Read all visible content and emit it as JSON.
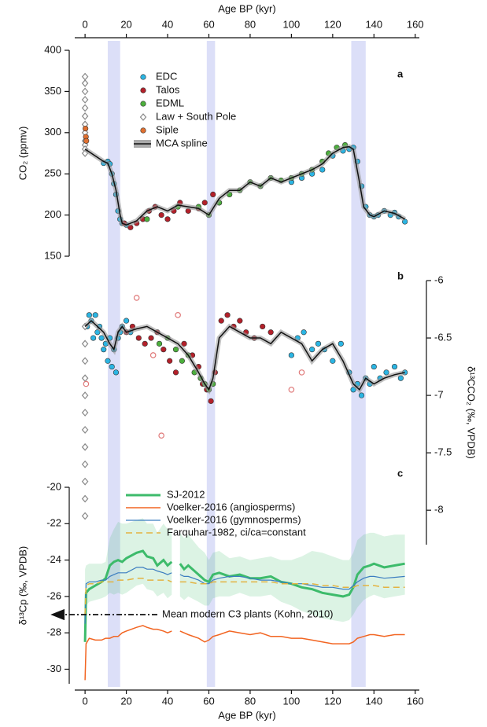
{
  "chart_data": [
    {
      "type": "scatter",
      "panel_label": "a",
      "xlabel_top": "Age BP (kyr)",
      "ylabel": "CO₂ (ppmv)",
      "y_axis_side": "left",
      "xlim": [
        -5,
        162
      ],
      "xticks": [
        0,
        20,
        40,
        60,
        80,
        100,
        120,
        140,
        160
      ],
      "ylim": [
        150,
        400
      ],
      "yticks": [
        150,
        200,
        250,
        300,
        350,
        400
      ],
      "shaded_x_ranges": [
        [
          11,
          17
        ],
        [
          59,
          63
        ],
        [
          129,
          136
        ]
      ],
      "series": [
        {
          "name": "EDC",
          "color": "#2bb5e3",
          "marker": "circle",
          "x": [
            9,
            11,
            12,
            13,
            14,
            15,
            16,
            17,
            18,
            20,
            100,
            105,
            110,
            115,
            120,
            125,
            128,
            130,
            132,
            134,
            136,
            138,
            140,
            142,
            145,
            148,
            150,
            152,
            155
          ],
          "values": [
            263,
            265,
            262,
            250,
            238,
            225,
            205,
            195,
            190,
            188,
            240,
            245,
            250,
            255,
            272,
            278,
            280,
            282,
            265,
            235,
            210,
            200,
            198,
            200,
            205,
            200,
            203,
            198,
            192
          ]
        },
        {
          "name": "Talos",
          "color": "#b3202a",
          "marker": "circle",
          "x": [
            19,
            22,
            25,
            28,
            31,
            34,
            37,
            40,
            43,
            46,
            50,
            55,
            58,
            62,
            65
          ],
          "values": [
            190,
            185,
            190,
            195,
            205,
            210,
            200,
            195,
            205,
            215,
            205,
            208,
            215,
            225,
            215
          ]
        },
        {
          "name": "EDML",
          "color": "#4caf3c",
          "marker": "circle",
          "x": [
            30,
            45,
            55,
            60,
            65,
            70,
            75,
            80,
            85,
            90,
            95,
            100,
            105,
            110,
            115,
            118,
            122,
            126
          ],
          "values": [
            195,
            210,
            210,
            200,
            215,
            225,
            230,
            240,
            235,
            245,
            242,
            245,
            250,
            255,
            265,
            275,
            282,
            285
          ]
        },
        {
          "name": "Law + South Pole",
          "color": "#888888",
          "marker": "diamond",
          "x": [
            0,
            0,
            0,
            0,
            0,
            0,
            0,
            0,
            0,
            0,
            0,
            0
          ],
          "values": [
            368,
            360,
            350,
            340,
            330,
            320,
            310,
            300,
            290,
            285,
            280,
            275
          ]
        },
        {
          "name": "Siple",
          "color": "#e07030",
          "marker": "circle",
          "x": [
            0.2,
            0.4,
            0.6
          ],
          "values": [
            305,
            295,
            290
          ]
        },
        {
          "name": "MCA spline",
          "color": "#111111",
          "marker": "line",
          "x": [
            0,
            3,
            6,
            9,
            11,
            13,
            15,
            17,
            18,
            20,
            25,
            30,
            35,
            40,
            45,
            50,
            55,
            60,
            65,
            70,
            75,
            80,
            85,
            90,
            95,
            100,
            105,
            110,
            115,
            120,
            125,
            128,
            130,
            133,
            135,
            138,
            140,
            145,
            150,
            155
          ],
          "values": [
            280,
            275,
            270,
            265,
            263,
            250,
            230,
            200,
            190,
            188,
            193,
            205,
            210,
            205,
            212,
            210,
            208,
            200,
            220,
            230,
            230,
            240,
            235,
            245,
            240,
            245,
            250,
            255,
            262,
            275,
            282,
            283,
            280,
            240,
            210,
            200,
            198,
            205,
            202,
            195
          ]
        }
      ]
    },
    {
      "type": "scatter",
      "panel_label": "b",
      "ylabel": "δ¹³CCO₂ (‰, VPDB)",
      "y_axis_side": "right",
      "xlim": [
        -5,
        162
      ],
      "ylim": [
        -8.3,
        -6
      ],
      "yticks": [
        -6,
        -6.5,
        -7,
        -7.5,
        -8
      ],
      "series": [
        {
          "color": "#2bb5e3",
          "marker": "circle",
          "x": [
            1,
            2,
            3,
            4,
            5,
            6,
            7,
            8,
            9,
            10,
            11,
            12,
            13,
            14,
            15,
            16,
            17,
            18,
            20,
            22,
            100,
            103,
            106,
            110,
            113,
            116,
            120,
            124,
            128,
            130,
            132,
            134,
            136,
            138,
            140,
            143,
            146,
            150,
            153,
            155
          ],
          "values": [
            -6.4,
            -6.3,
            -6.35,
            -6.5,
            -6.3,
            -6.45,
            -6.4,
            -6.5,
            -6.6,
            -6.55,
            -6.7,
            -6.5,
            -6.75,
            -6.6,
            -6.8,
            -6.5,
            -6.45,
            -6.4,
            -6.35,
            -6.45,
            -6.65,
            -6.5,
            -6.45,
            -6.6,
            -6.55,
            -6.6,
            -6.7,
            -6.55,
            -6.8,
            -6.95,
            -6.9,
            -7.0,
            -6.85,
            -6.9,
            -6.75,
            -6.85,
            -6.8,
            -6.75,
            -6.85,
            -6.8
          ]
        },
        {
          "color": "#b3202a",
          "marker": "circle",
          "x": [
            20,
            23,
            26,
            29,
            32,
            35,
            38,
            41,
            44,
            48,
            52,
            55,
            57,
            59,
            61,
            63,
            66,
            69,
            72,
            75,
            78,
            82,
            86,
            90
          ],
          "values": [
            -6.45,
            -6.4,
            -6.5,
            -6.55,
            -6.5,
            -6.45,
            -6.6,
            -6.7,
            -6.8,
            -6.55,
            -6.65,
            -6.75,
            -6.9,
            -6.95,
            -7.05,
            -6.8,
            -6.35,
            -6.3,
            -6.4,
            -6.35,
            -6.45,
            -6.5,
            -6.4,
            -6.45
          ]
        },
        {
          "color": "#4caf3c",
          "marker": "circle",
          "x": [
            36,
            40,
            44,
            47,
            50,
            53,
            56,
            58,
            60,
            62
          ],
          "values": [
            -6.55,
            -6.5,
            -6.6,
            -6.7,
            -6.65,
            -6.8,
            -6.85,
            -6.9,
            -6.95,
            -6.9
          ]
        },
        {
          "color": "#888888",
          "marker": "diamond",
          "x": [
            0,
            0,
            0,
            0,
            0,
            0,
            0,
            0,
            0,
            0,
            0,
            0
          ],
          "values": [
            -6.4,
            -6.55,
            -6.7,
            -6.85,
            -7.0,
            -7.15,
            -7.3,
            -7.45,
            -7.6,
            -7.75,
            -7.9,
            -8.05
          ]
        },
        {
          "color": "#e07a7a",
          "marker": "open-circle",
          "x": [
            0.5,
            25,
            33,
            37,
            45,
            100,
            105
          ],
          "values": [
            -6.9,
            -6.15,
            -6.65,
            -7.35,
            -6.3,
            -6.95,
            -6.8
          ]
        },
        {
          "color": "#111111",
          "marker": "line",
          "x": [
            0,
            3,
            6,
            9,
            12,
            14,
            16,
            18,
            20,
            25,
            30,
            35,
            40,
            45,
            50,
            55,
            58,
            60,
            62,
            65,
            70,
            75,
            80,
            85,
            90,
            95,
            100,
            105,
            110,
            115,
            120,
            125,
            130,
            133,
            136,
            140,
            145,
            150,
            155
          ],
          "values": [
            -6.4,
            -6.35,
            -6.4,
            -6.45,
            -6.55,
            -6.6,
            -6.45,
            -6.4,
            -6.45,
            -6.42,
            -6.4,
            -6.45,
            -6.5,
            -6.55,
            -6.65,
            -6.8,
            -6.9,
            -6.95,
            -6.85,
            -6.5,
            -6.4,
            -6.45,
            -6.5,
            -6.5,
            -6.55,
            -6.45,
            -6.5,
            -6.55,
            -6.7,
            -6.6,
            -6.55,
            -6.7,
            -6.9,
            -6.95,
            -6.85,
            -6.9,
            -6.85,
            -6.82,
            -6.8
          ]
        }
      ]
    },
    {
      "type": "line",
      "panel_label": "c",
      "xlabel": "Age BP (kyr)",
      "ylabel": "δ¹³Cp (‰, VPDB)",
      "y_axis_side": "left",
      "xlim": [
        -5,
        162
      ],
      "xticks": [
        0,
        20,
        40,
        60,
        80,
        100,
        120,
        140,
        160
      ],
      "ylim": [
        -30.8,
        -20
      ],
      "yticks": [
        -20,
        -22,
        -24,
        -26,
        -28,
        -30
      ],
      "annotation": {
        "text": "Mean modern C3 plants (Kohn, 2010)",
        "value": -27
      },
      "x": [
        0,
        0.5,
        2,
        5,
        8,
        10,
        12,
        14,
        16,
        18,
        20,
        25,
        28,
        30,
        33,
        35,
        38,
        40,
        42,
        44,
        46,
        48,
        50,
        55,
        58,
        60,
        62,
        65,
        70,
        75,
        80,
        85,
        90,
        95,
        100,
        105,
        110,
        115,
        120,
        125,
        128,
        130,
        132,
        135,
        138,
        140,
        145,
        150,
        155
      ],
      "series": [
        {
          "name": "SJ-2012",
          "color": "#3dbb6b",
          "width": 3,
          "values": [
            -28.5,
            -25.8,
            -25.6,
            -25.4,
            -25.2,
            -25.0,
            -24.3,
            -24.1,
            -24.0,
            -24.1,
            -23.9,
            -23.6,
            -23.5,
            -23.8,
            -23.9,
            -24.3,
            -24.0,
            -24.3,
            -24.1,
            null,
            -24.2,
            -24.5,
            -24.3,
            -24.8,
            -25.1,
            -25.2,
            -24.8,
            -24.7,
            -24.9,
            -24.8,
            -25.0,
            -25.0,
            -24.9,
            -25.2,
            -25.3,
            -25.5,
            -25.6,
            -25.8,
            -25.9,
            -26.0,
            -25.9,
            -25.5,
            -24.8,
            -24.4,
            -24.3,
            -24.2,
            -24.4,
            -24.3,
            -24.2
          ],
          "upper": [
            -24.5,
            -24.3,
            -24.2,
            -24.2,
            -24.2,
            -24.1,
            -22.8,
            -22.3,
            -21.9,
            -22.0,
            -22.0,
            -21.8,
            -21.7,
            -22.0,
            -22.0,
            -22.5,
            -22.0,
            -22.3,
            -22.4,
            null,
            -22.5,
            -22.8,
            -22.6,
            -23.3,
            -23.6,
            -24.0,
            -23.6,
            -23.5,
            -23.9,
            -23.8,
            -24.0,
            -23.9,
            -23.8,
            -24.0,
            -24.0,
            -23.8,
            -23.5,
            -23.6,
            -23.8,
            -24.0,
            -24.0,
            -23.6,
            -22.9,
            -22.6,
            -22.5,
            -22.5,
            -22.7,
            -22.6,
            -22.6
          ],
          "lower": [
            -29.0,
            -26.5,
            -26.3,
            -26.2,
            -26.1,
            -26.0,
            -25.8,
            -25.9,
            -25.8,
            -25.9,
            -25.8,
            -25.4,
            -25.3,
            -25.6,
            -25.7,
            -26.0,
            -25.8,
            -26.1,
            -25.9,
            null,
            -26.0,
            -26.2,
            -26.0,
            -26.3,
            -26.5,
            -26.5,
            -26.1,
            -26.0,
            -26.0,
            -25.8,
            -26.0,
            -26.0,
            -25.9,
            -26.3,
            -26.5,
            -26.8,
            -27.0,
            -27.2,
            -27.3,
            -27.4,
            -27.3,
            -27.0,
            -26.6,
            -26.2,
            -26.0,
            -25.9,
            -26.1,
            -26.0,
            -25.9
          ]
        },
        {
          "name": "Voelker-2016 (angiosperms)",
          "color": "#f26522",
          "width": 1.5,
          "values": [
            -30.6,
            -28.6,
            -28.3,
            -28.4,
            -28.4,
            -28.3,
            -28.3,
            -28.2,
            -28.2,
            -28.0,
            -27.9,
            -27.7,
            -27.6,
            -27.7,
            -27.8,
            -27.8,
            -27.9,
            -28.0,
            -27.9,
            null,
            -27.9,
            -28.0,
            -28.1,
            -28.3,
            -28.5,
            -28.4,
            -28.2,
            -28.1,
            -27.9,
            -28.0,
            -28.1,
            -28.0,
            -28.2,
            -28.2,
            -28.3,
            -28.3,
            -28.4,
            -28.5,
            -28.6,
            -28.6,
            -28.6,
            -28.5,
            -28.3,
            -28.2,
            -28.1,
            -28.1,
            -28.2,
            -28.1,
            -28.1
          ]
        },
        {
          "name": "Voelker-2016 (gymnosperms)",
          "color": "#3b7dc0",
          "width": 1.2,
          "values": [
            -27.5,
            -25.3,
            -25.2,
            -25.2,
            -25.1,
            -25.1,
            -24.9,
            -24.8,
            -24.7,
            -24.7,
            -24.7,
            -24.4,
            -24.4,
            -24.5,
            -24.5,
            -24.6,
            -24.7,
            -24.8,
            -24.7,
            null,
            -24.8,
            -24.9,
            -24.9,
            -25.1,
            -25.3,
            -25.3,
            -25.1,
            -25.0,
            -24.9,
            -24.9,
            -25.0,
            -25.1,
            -25.1,
            -25.2,
            -25.3,
            -25.3,
            -25.4,
            -25.5,
            -25.5,
            -25.6,
            -25.6,
            -25.4,
            -25.2,
            -25.0,
            -24.9,
            -24.9,
            -25.0,
            -24.95,
            -24.9
          ]
        },
        {
          "name": "Farquhar-1982, ci/ca=constant",
          "color": "#e3b341",
          "width": 1.5,
          "dashed": true,
          "values": [
            -27.0,
            -25.4,
            -25.3,
            -25.3,
            -25.2,
            -25.2,
            -25.2,
            -25.2,
            -25.1,
            -25.1,
            -25.1,
            -25.0,
            -25.0,
            -25.1,
            -25.1,
            -25.1,
            -25.1,
            -25.1,
            -25.2,
            null,
            -25.2,
            -25.2,
            -25.2,
            -25.3,
            -25.3,
            -25.3,
            -25.2,
            -25.2,
            -25.2,
            -25.2,
            -25.2,
            -25.2,
            -25.2,
            -25.3,
            -25.3,
            -25.3,
            -25.3,
            -25.4,
            -25.4,
            -25.5,
            -25.5,
            -25.5,
            -25.4,
            -25.4,
            -25.4,
            -25.4,
            -25.5,
            -25.5,
            -25.5
          ]
        }
      ]
    }
  ]
}
